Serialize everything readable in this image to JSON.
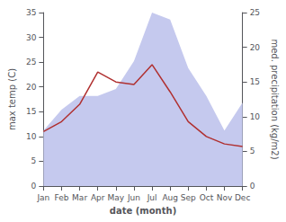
{
  "chart_data": {
    "type": "line",
    "xlabel": "date (month)",
    "ylabel": "max temp (C)",
    "y2label": "med. precipitation (kg/m2)",
    "categories": [
      "Jan",
      "Feb",
      "Mar",
      "Apr",
      "May",
      "Jun",
      "Jul",
      "Aug",
      "Sep",
      "Oct",
      "Nov",
      "Dec"
    ],
    "series": [
      {
        "type": "area",
        "axis": "y2",
        "color": "#c5c9ee",
        "values": [
          8,
          11,
          13,
          13,
          14,
          18,
          25,
          24,
          17,
          13,
          8,
          12
        ]
      },
      {
        "type": "line",
        "color": "#b03030",
        "values": [
          11,
          13,
          16.5,
          23,
          21,
          20.5,
          24.5,
          19,
          13,
          10,
          8.5,
          8
        ]
      }
    ],
    "ylim": [
      0,
      35
    ],
    "yticks": [
      0,
      5,
      10,
      15,
      20,
      25,
      30,
      35
    ],
    "y2lim": [
      0,
      25
    ],
    "y2ticks": [
      0,
      5,
      10,
      15,
      20,
      25
    ],
    "grid": false
  }
}
